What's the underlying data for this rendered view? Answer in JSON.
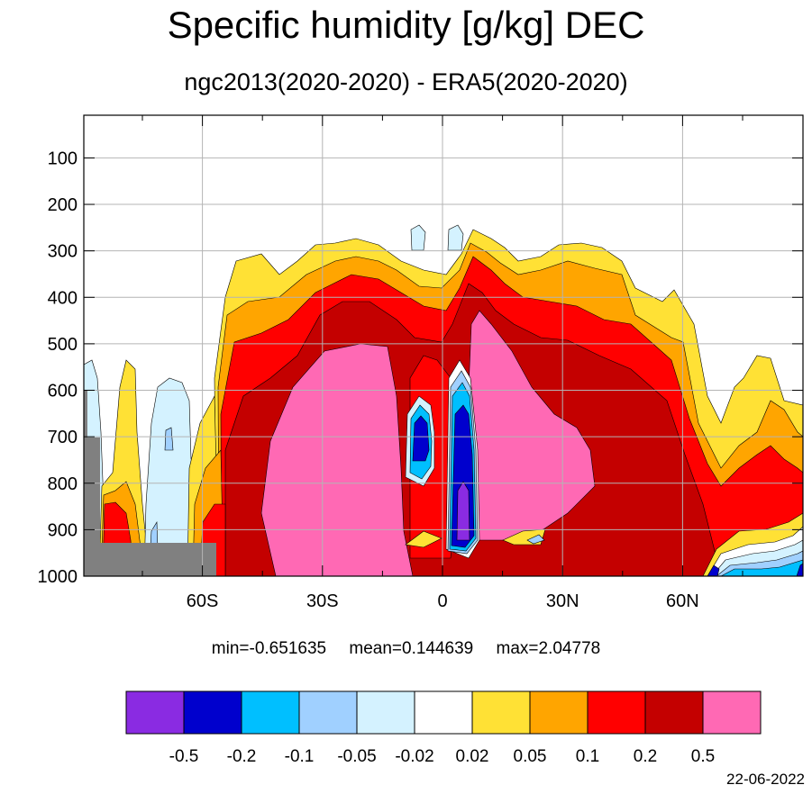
{
  "title": "Specific humidity [g/kg] DEC",
  "subtitle": "ngc2013(2020-2020) - ERA5(2020-2020)",
  "chart_data": {
    "type": "heatmap",
    "title": "Specific humidity [g/kg] DEC",
    "subtitle": "ngc2013(2020-2020) - ERA5(2020-2020)",
    "x_ticks": [
      {
        "value": -60,
        "label": "60S"
      },
      {
        "value": -30,
        "label": "30S"
      },
      {
        "value": 0,
        "label": "0"
      },
      {
        "value": 30,
        "label": "30N"
      },
      {
        "value": 60,
        "label": "60N"
      }
    ],
    "y_ticks": [
      {
        "value": 100,
        "label": "100"
      },
      {
        "value": 200,
        "label": "200"
      },
      {
        "value": 300,
        "label": "300"
      },
      {
        "value": 400,
        "label": "400"
      },
      {
        "value": 500,
        "label": "500"
      },
      {
        "value": 600,
        "label": "600"
      },
      {
        "value": 700,
        "label": "700"
      },
      {
        "value": 800,
        "label": "800"
      },
      {
        "value": 900,
        "label": "900"
      },
      {
        "value": 1000,
        "label": "1000"
      }
    ],
    "xlim": [
      -90,
      90
    ],
    "ylim": [
      1000,
      10
    ],
    "grid": true,
    "contour_levels": [
      -0.5,
      -0.2,
      -0.1,
      -0.05,
      -0.02,
      0.02,
      0.05,
      0.1,
      0.2,
      0.5
    ],
    "colorbar_colors": [
      "#8a2be2",
      "#0000cd",
      "#00bfff",
      "#a0d0ff",
      "#d4f2ff",
      "#ffffff",
      "#ffe135",
      "#ffa500",
      "#ff0000",
      "#c40000",
      "#ff69b4"
    ],
    "colorbar_labels": [
      "-0.5",
      "-0.2",
      "-0.1",
      "-0.05",
      "-0.02",
      "0.02",
      "0.05",
      "0.1",
      "0.2",
      "0.5"
    ],
    "stats": {
      "min": "min=-0.651635",
      "mean": "mean=0.144639",
      "max": "max=2.04778"
    },
    "date": "22-06-2022"
  }
}
